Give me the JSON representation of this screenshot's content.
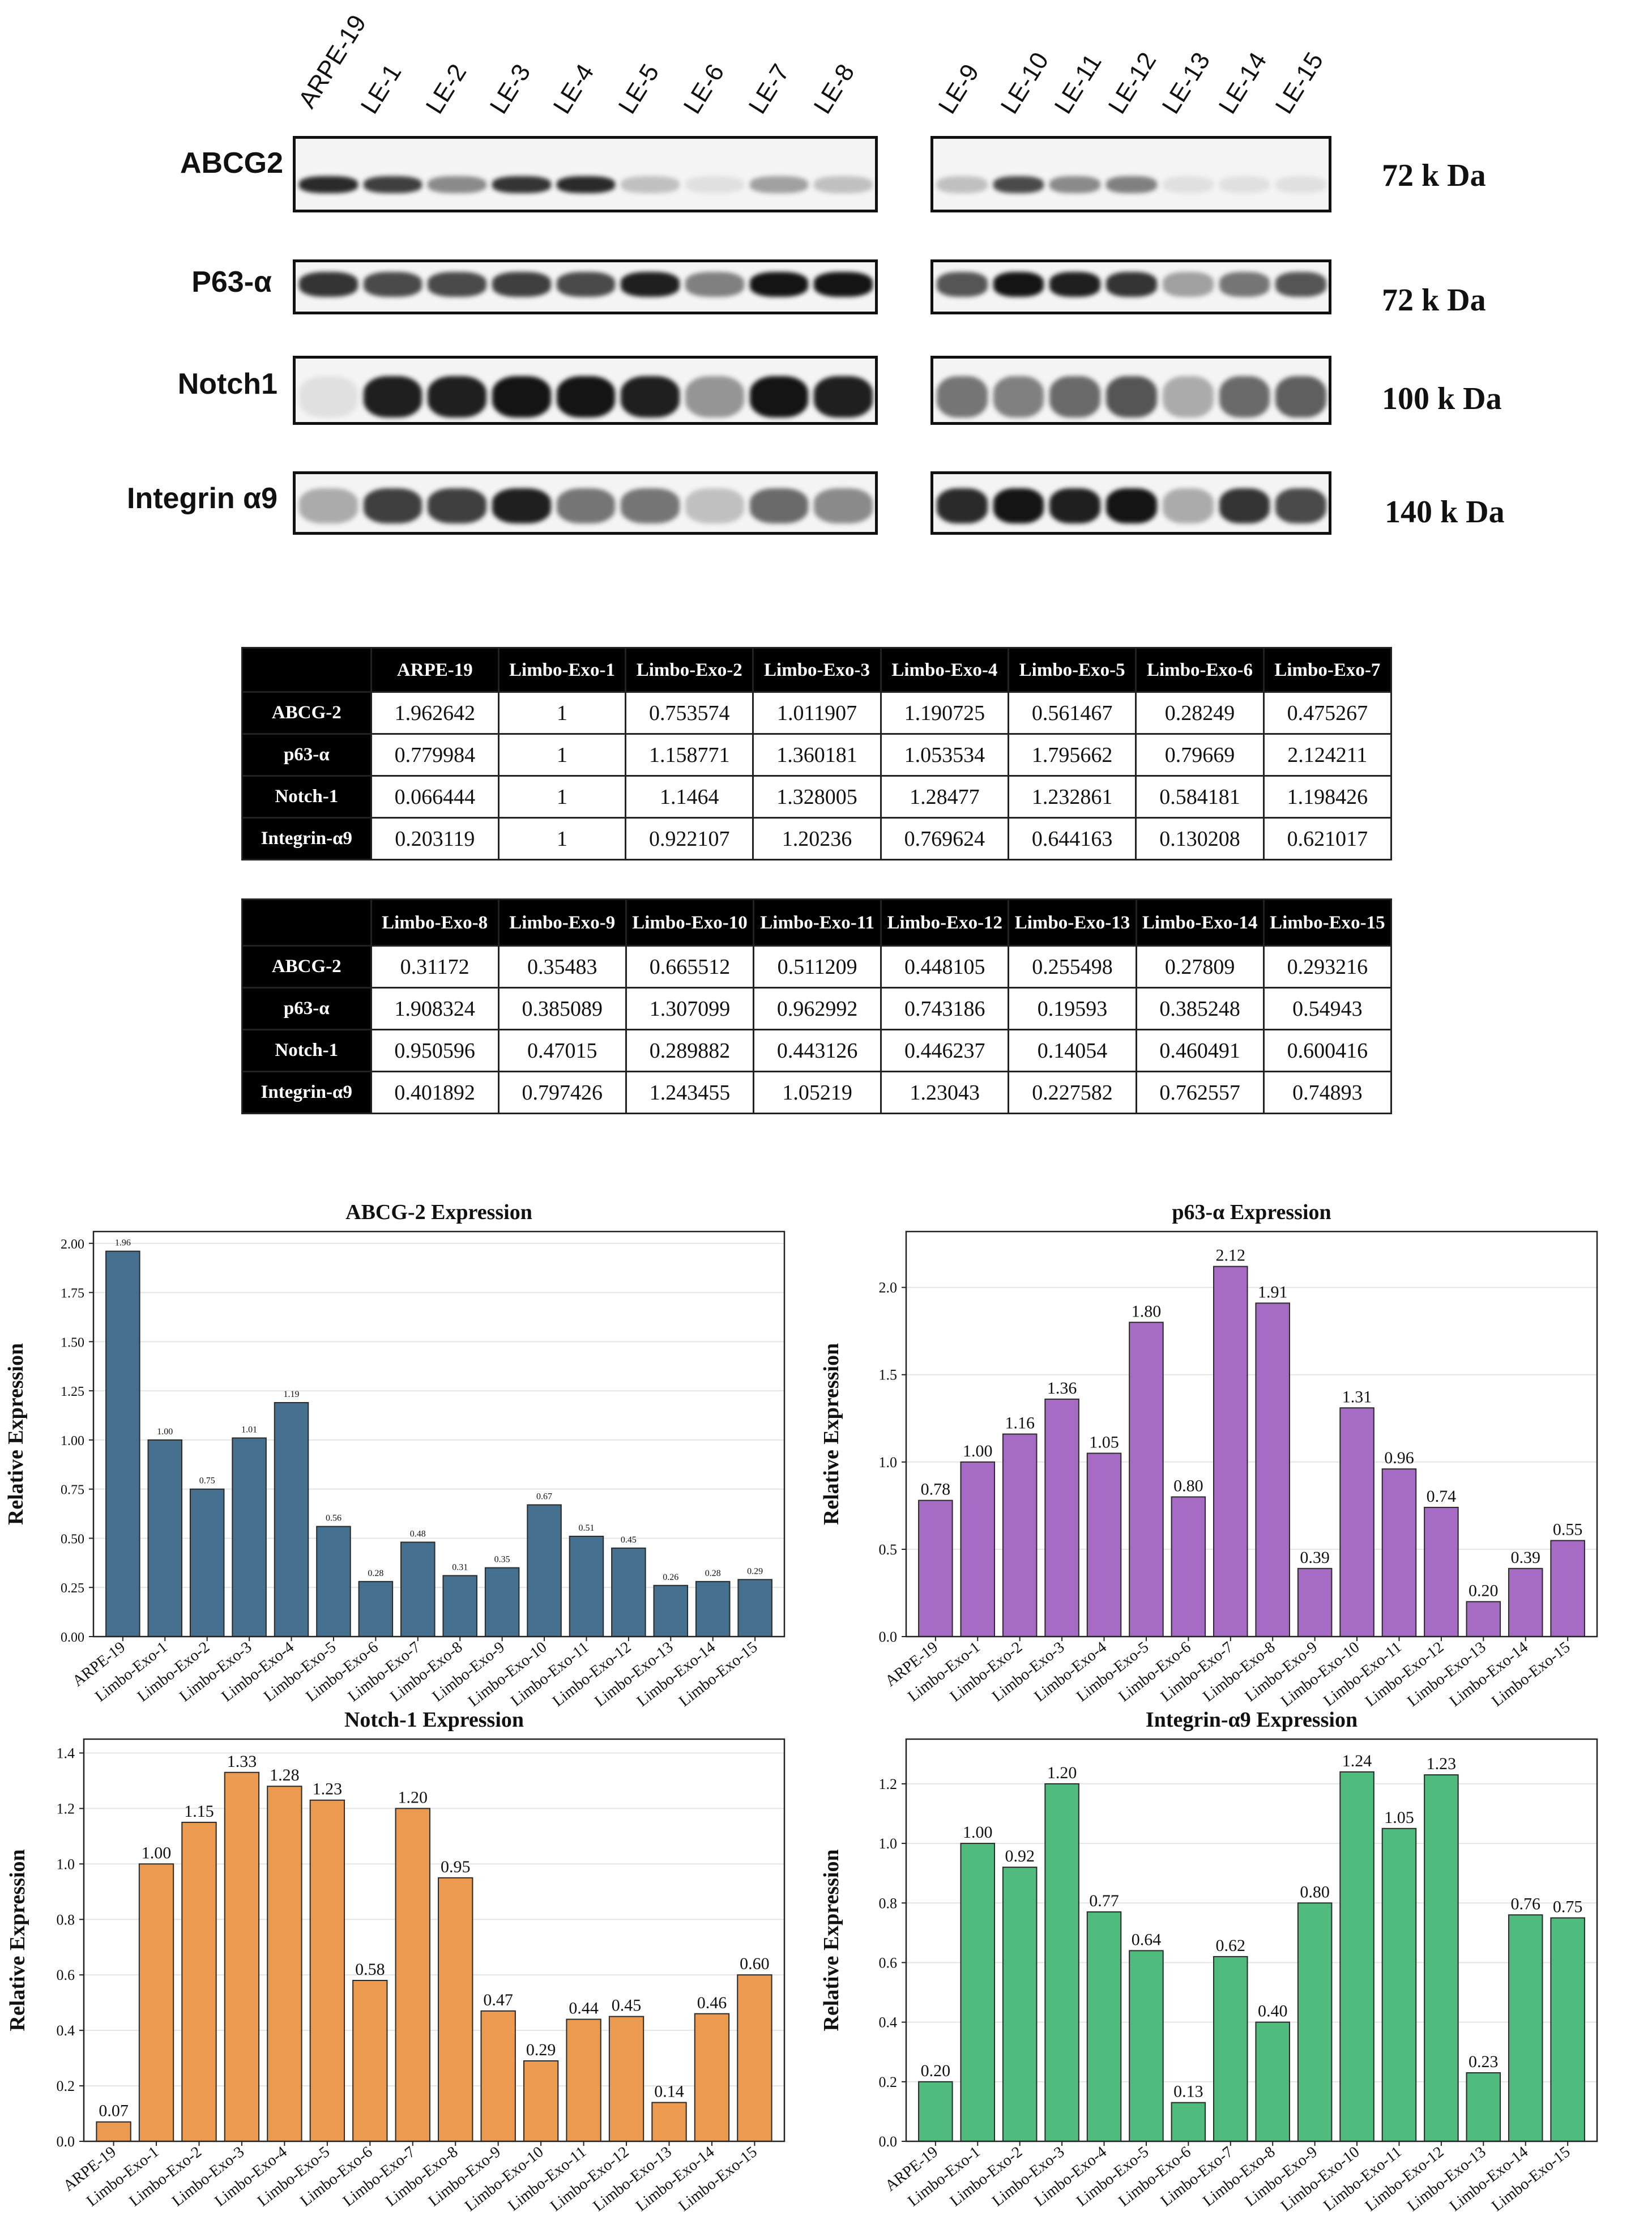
{
  "blot": {
    "lanes_left": [
      "ARPE-19",
      "LE-1",
      "LE-2",
      "LE-3",
      "LE-4",
      "LE-5",
      "LE-6",
      "LE-7",
      "LE-8"
    ],
    "lanes_right": [
      "LE-9",
      "LE-10",
      "LE-11",
      "LE-12",
      "LE-13",
      "LE-14",
      "LE-15"
    ],
    "rows": [
      {
        "protein": "ABCG2",
        "size": "72 k Da"
      },
      {
        "protein": "P63-α",
        "size": "72 k Da"
      },
      {
        "protein": "Notch1",
        "size": "100 k Da"
      },
      {
        "protein": "Integrin α9",
        "size": "140 k Da"
      }
    ]
  },
  "table1": {
    "headers": [
      "ARPE-19",
      "Limbo-Exo-1",
      "Limbo-Exo-2",
      "Limbo-Exo-3",
      "Limbo-Exo-4",
      "Limbo-Exo-5",
      "Limbo-Exo-6",
      "Limbo-Exo-7"
    ],
    "rows": [
      {
        "label": "ABCG-2",
        "cells": [
          "1.962642",
          "1",
          "0.753574",
          "1.011907",
          "1.190725",
          "0.561467",
          "0.28249",
          "0.475267"
        ]
      },
      {
        "label": "p63-α",
        "cells": [
          "0.779984",
          "1",
          "1.158771",
          "1.360181",
          "1.053534",
          "1.795662",
          "0.79669",
          "2.124211"
        ]
      },
      {
        "label": "Notch-1",
        "cells": [
          "0.066444",
          "1",
          "1.1464",
          "1.328005",
          "1.28477",
          "1.232861",
          "0.584181",
          "1.198426"
        ]
      },
      {
        "label": "Integrin-α9",
        "cells": [
          "0.203119",
          "1",
          "0.922107",
          "1.20236",
          "0.769624",
          "0.644163",
          "0.130208",
          "0.621017"
        ]
      }
    ]
  },
  "table2": {
    "headers": [
      "Limbo-Exo-8",
      "Limbo-Exo-9",
      "Limbo-Exo-10",
      "Limbo-Exo-11",
      "Limbo-Exo-12",
      "Limbo-Exo-13",
      "Limbo-Exo-14",
      "Limbo-Exo-15"
    ],
    "rows": [
      {
        "label": "ABCG-2",
        "cells": [
          "0.31172",
          "0.35483",
          "0.665512",
          "0.511209",
          "0.448105",
          "0.255498",
          "0.27809",
          "0.293216"
        ]
      },
      {
        "label": "p63-α",
        "cells": [
          "1.908324",
          "0.385089",
          "1.307099",
          "0.962992",
          "0.743186",
          "0.19593",
          "0.385248",
          "0.54943"
        ]
      },
      {
        "label": "Notch-1",
        "cells": [
          "0.950596",
          "0.47015",
          "0.289882",
          "0.443126",
          "0.446237",
          "0.14054",
          "0.460491",
          "0.600416"
        ]
      },
      {
        "label": "Integrin-α9",
        "cells": [
          "0.401892",
          "0.797426",
          "1.243455",
          "1.05219",
          "1.23043",
          "0.227582",
          "0.762557",
          "0.74893"
        ]
      }
    ]
  },
  "chart_data": [
    {
      "type": "bar",
      "title": "ABCG-2 Expression",
      "ylabel": "Relative Expression",
      "categories": [
        "ARPE-19",
        "Limbo-Exo-1",
        "Limbo-Exo-2",
        "Limbo-Exo-3",
        "Limbo-Exo-4",
        "Limbo-Exo-5",
        "Limbo-Exo-6",
        "Limbo-Exo-7",
        "Limbo-Exo-8",
        "Limbo-Exo-9",
        "Limbo-Exo-10",
        "Limbo-Exo-11",
        "Limbo-Exo-12",
        "Limbo-Exo-13",
        "Limbo-Exo-14",
        "Limbo-Exo-15"
      ],
      "values": [
        1.96,
        1.0,
        0.75,
        1.01,
        1.19,
        0.56,
        0.28,
        0.48,
        0.31,
        0.35,
        0.67,
        0.51,
        0.45,
        0.26,
        0.28,
        0.29
      ],
      "ylim": [
        0,
        2.06
      ],
      "yticks": [
        0.0,
        0.25,
        0.5,
        0.75,
        1.0,
        1.25,
        1.5,
        1.75,
        2.0
      ],
      "ytick_decimals": 2,
      "color": "#46708f",
      "label_size": "small",
      "grid": true
    },
    {
      "type": "bar",
      "title": "p63-α Expression",
      "ylabel": "Relative Expression",
      "categories": [
        "ARPE-19",
        "Limbo-Exo-1",
        "Limbo-Exo-2",
        "Limbo-Exo-3",
        "Limbo-Exo-4",
        "Limbo-Exo-5",
        "Limbo-Exo-6",
        "Limbo-Exo-7",
        "Limbo-Exo-8",
        "Limbo-Exo-9",
        "Limbo-Exo-10",
        "Limbo-Exo-11",
        "Limbo-Exo-12",
        "Limbo-Exo-13",
        "Limbo-Exo-14",
        "Limbo-Exo-15"
      ],
      "values": [
        0.78,
        1.0,
        1.16,
        1.36,
        1.05,
        1.8,
        0.8,
        2.12,
        1.91,
        0.39,
        1.31,
        0.96,
        0.74,
        0.2,
        0.39,
        0.55
      ],
      "ylim": [
        0,
        2.32
      ],
      "yticks": [
        0.0,
        0.5,
        1.0,
        1.5,
        2.0
      ],
      "ytick_decimals": 1,
      "color": "#a66bc4",
      "label_size": "large",
      "grid": true
    },
    {
      "type": "bar",
      "title": "Notch-1 Expression",
      "ylabel": "Relative Expression",
      "categories": [
        "ARPE-19",
        "Limbo-Exo-1",
        "Limbo-Exo-2",
        "Limbo-Exo-3",
        "Limbo-Exo-4",
        "Limbo-Exo-5",
        "Limbo-Exo-6",
        "Limbo-Exo-7",
        "Limbo-Exo-8",
        "Limbo-Exo-9",
        "Limbo-Exo-10",
        "Limbo-Exo-11",
        "Limbo-Exo-12",
        "Limbo-Exo-13",
        "Limbo-Exo-14",
        "Limbo-Exo-15"
      ],
      "values": [
        0.07,
        1.0,
        1.15,
        1.33,
        1.28,
        1.23,
        0.58,
        1.2,
        0.95,
        0.47,
        0.29,
        0.44,
        0.45,
        0.14,
        0.46,
        0.6
      ],
      "ylim": [
        0,
        1.45
      ],
      "yticks": [
        0.0,
        0.2,
        0.4,
        0.6,
        0.8,
        1.0,
        1.2,
        1.4
      ],
      "ytick_decimals": 1,
      "color": "#eb9a4f",
      "label_size": "large",
      "grid": true
    },
    {
      "type": "bar",
      "title": "Integrin-α9 Expression",
      "ylabel": "Relative Expression",
      "categories": [
        "ARPE-19",
        "Limbo-Exo-1",
        "Limbo-Exo-2",
        "Limbo-Exo-3",
        "Limbo-Exo-4",
        "Limbo-Exo-5",
        "Limbo-Exo-6",
        "Limbo-Exo-7",
        "Limbo-Exo-8",
        "Limbo-Exo-9",
        "Limbo-Exo-10",
        "Limbo-Exo-11",
        "Limbo-Exo-12",
        "Limbo-Exo-13",
        "Limbo-Exo-14",
        "Limbo-Exo-15"
      ],
      "values": [
        0.2,
        1.0,
        0.92,
        1.2,
        0.77,
        0.64,
        0.13,
        0.62,
        0.4,
        0.8,
        1.24,
        1.05,
        1.23,
        0.23,
        0.76,
        0.75
      ],
      "ylim": [
        0,
        1.35
      ],
      "yticks": [
        0.0,
        0.2,
        0.4,
        0.6,
        0.8,
        1.0,
        1.2
      ],
      "ytick_decimals": 1,
      "color": "#4fbb7d",
      "label_size": "large",
      "grid": true
    }
  ]
}
